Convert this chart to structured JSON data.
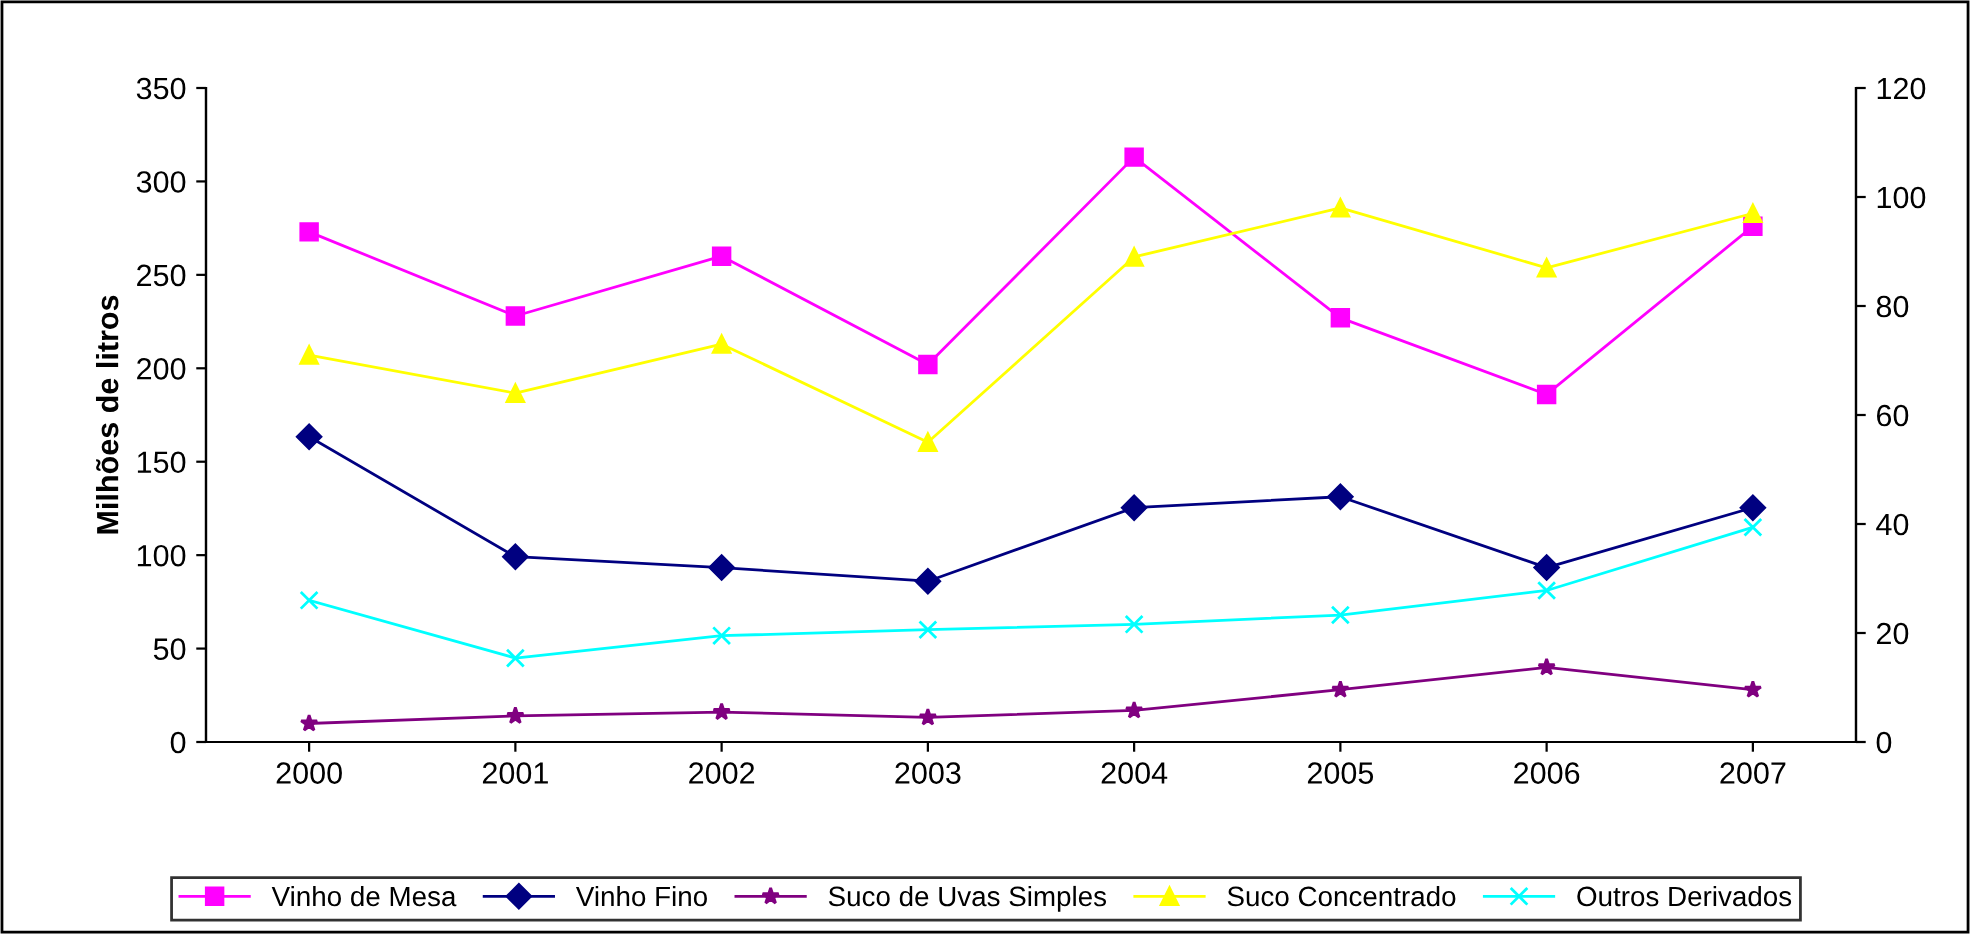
{
  "chart_data": {
    "type": "line",
    "ylabel": "Milhões de litros",
    "categories": [
      "2000",
      "2001",
      "2002",
      "2003",
      "2004",
      "2005",
      "2006",
      "2007"
    ],
    "series": [
      {
        "name": "Vinho de Mesa",
        "color": "#ff00ff",
        "marker": "square",
        "values": [
          273,
          228,
          260,
          202,
          313,
          227,
          186,
          276
        ]
      },
      {
        "name": "Vinho Fino",
        "color": "#000080",
        "marker": "diamond",
        "axis": "y2",
        "values": [
          56,
          34,
          32,
          29.5,
          43,
          45,
          32,
          43
        ]
      },
      {
        "name": "Suco de Uvas Simples",
        "color": "#800080",
        "marker": "star",
        "axis": "y2",
        "values": [
          3.4,
          4.8,
          5.5,
          4.5,
          5.8,
          9.6,
          13.7,
          9.6
        ]
      },
      {
        "name": "Suco Concentrado",
        "color": "#ffff00",
        "marker": "triangle",
        "axis": "y2",
        "values": [
          71,
          64,
          73,
          55,
          89,
          98,
          87,
          97
        ]
      },
      {
        "name": "Outros Derivados",
        "color": "#00ffff",
        "marker": "cross",
        "axis": "y2",
        "values": [
          26,
          15.4,
          19.5,
          20.6,
          21.6,
          23.3,
          27.8,
          39.4
        ]
      }
    ],
    "ylim": [
      0,
      350
    ],
    "yticks": [
      0,
      50,
      100,
      150,
      200,
      250,
      300,
      350
    ],
    "y2lim": [
      0,
      120
    ],
    "y2ticks": [
      0,
      20,
      40,
      60,
      80,
      100,
      120
    ],
    "grid": false,
    "legend": "bottom",
    "line_style": "solid"
  }
}
